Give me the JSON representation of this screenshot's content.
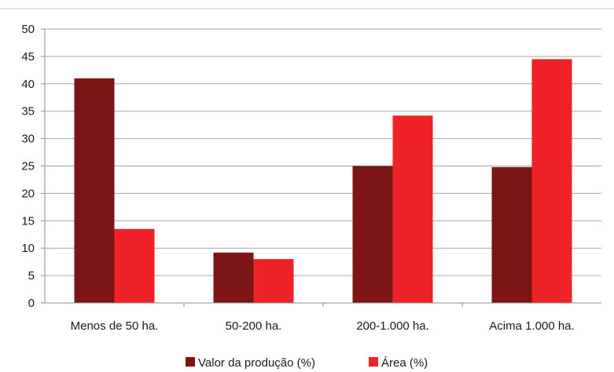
{
  "chart_data": {
    "type": "bar",
    "categories": [
      "Menos de 50 ha.",
      "50-200 ha.",
      "200-1.000 ha.",
      "Acima 1.000 ha."
    ],
    "series": [
      {
        "name": "Valor da produção (%)",
        "values": [
          41,
          9.2,
          25,
          24.8
        ],
        "color": "#7b1516"
      },
      {
        "name": "Área (%)",
        "values": [
          13.5,
          8,
          34.2,
          44.5
        ],
        "color": "#ee2227"
      }
    ],
    "yticks": [
      0,
      5,
      10,
      15,
      20,
      25,
      30,
      35,
      40,
      45,
      50
    ],
    "ylim": [
      0,
      50
    ],
    "grid": true,
    "legend_position": "bottom"
  }
}
